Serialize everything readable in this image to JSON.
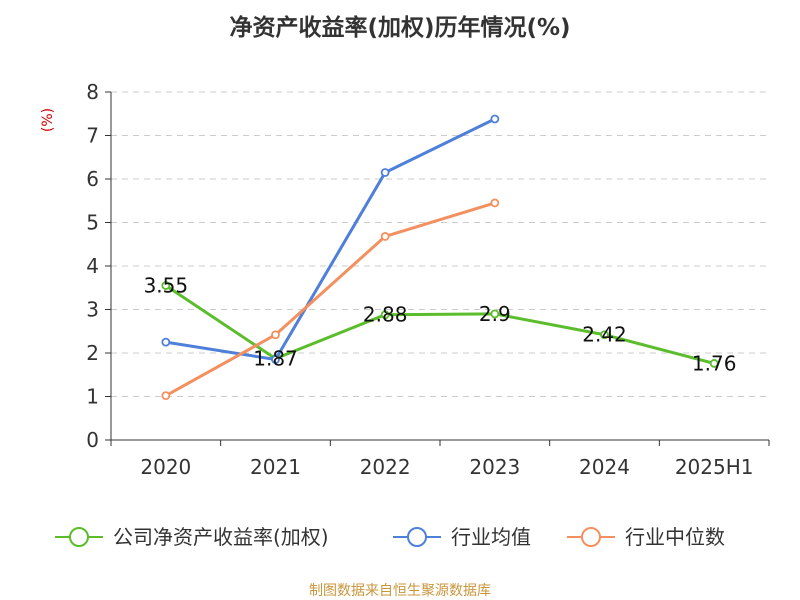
{
  "chart_data": {
    "type": "line",
    "title": "净资产收益率(加权)历年情况(%)",
    "ylabel": "(%)",
    "xlabel": "",
    "categories": [
      "2020",
      "2021",
      "2022",
      "2023",
      "2024",
      "2025H1"
    ],
    "ylim": [
      0,
      8
    ],
    "yticks": [
      0,
      1,
      2,
      3,
      4,
      5,
      6,
      7,
      8
    ],
    "grid": true,
    "legend_position": "bottom",
    "series": [
      {
        "name": "公司净资产收益率(加权)",
        "color": "#5bbd2b",
        "values": [
          3.55,
          1.87,
          2.88,
          2.9,
          2.42,
          1.76
        ],
        "labels": [
          "3.55",
          "1.87",
          "2.88",
          "2.9",
          "2.42",
          "1.76"
        ]
      },
      {
        "name": "行业均值",
        "color": "#4e7fd9",
        "values": [
          2.25,
          1.85,
          6.15,
          7.38,
          null,
          null
        ]
      },
      {
        "name": "行业中位数",
        "color": "#f4905f",
        "values": [
          1.02,
          2.42,
          4.68,
          5.45,
          null,
          null
        ]
      }
    ]
  },
  "source_text": "制图数据来自恒生聚源数据库"
}
